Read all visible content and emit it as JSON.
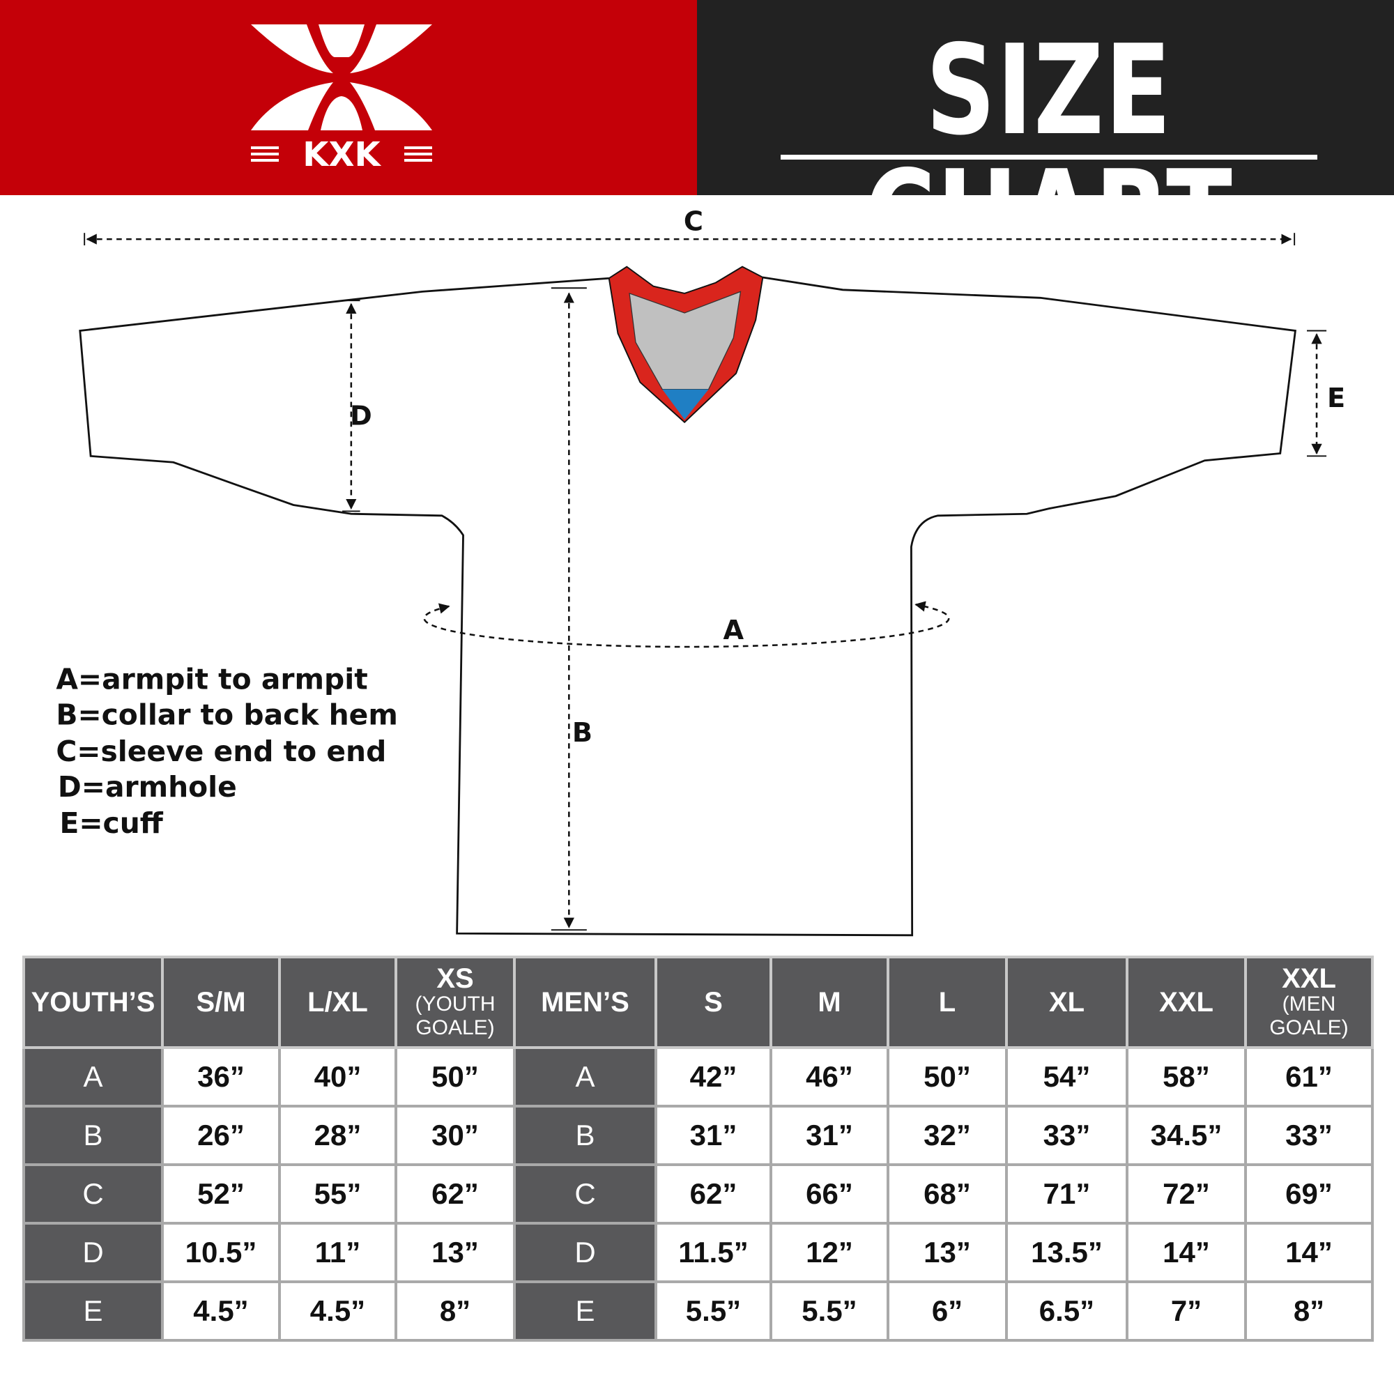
{
  "header": {
    "brand": "KXK",
    "title": "SIZE CHART",
    "colors": {
      "brand_red": "#c40008",
      "dark": "#222222",
      "table_header": "#58585a",
      "collar_red": "#d9251d",
      "collar_gray": "#c0c0c0",
      "collar_blue": "#1f7fc4"
    }
  },
  "diagram": {
    "labels": {
      "A": "A",
      "B": "B",
      "C": "C",
      "D": "D",
      "E": "E"
    },
    "legend": [
      "A=armpit to armpit",
      "B=collar to back hem",
      "C=sleeve end to end",
      "D=armhole",
      "E=cuff"
    ]
  },
  "table": {
    "columns": [
      {
        "main": "YOUTH’S",
        "sub": ""
      },
      {
        "main": "S/M",
        "sub": ""
      },
      {
        "main": "L/XL",
        "sub": ""
      },
      {
        "main": "XS",
        "sub": "(YOUTH GOALE)"
      },
      {
        "main": "MEN’S",
        "sub": ""
      },
      {
        "main": "S",
        "sub": ""
      },
      {
        "main": "M",
        "sub": ""
      },
      {
        "main": "L",
        "sub": ""
      },
      {
        "main": "XL",
        "sub": ""
      },
      {
        "main": "XXL",
        "sub": ""
      },
      {
        "main": "XXL",
        "sub": "(MEN GOALE)"
      }
    ],
    "rows": [
      {
        "youth_label": "A",
        "youth": [
          "36”",
          "40”",
          "50”"
        ],
        "men_label": "A",
        "men": [
          "42”",
          "46”",
          "50”",
          "54”",
          "58”",
          "61”"
        ]
      },
      {
        "youth_label": "B",
        "youth": [
          "26”",
          "28”",
          "30”"
        ],
        "men_label": "B",
        "men": [
          "31”",
          "31”",
          "32”",
          "33”",
          "34.5”",
          "33”"
        ]
      },
      {
        "youth_label": "C",
        "youth": [
          "52”",
          "55”",
          "62”"
        ],
        "men_label": "C",
        "men": [
          "62”",
          "66”",
          "68”",
          "71”",
          "72”",
          "69”"
        ]
      },
      {
        "youth_label": "D",
        "youth": [
          "10.5”",
          "11”",
          "13”"
        ],
        "men_label": "D",
        "men": [
          "11.5”",
          "12”",
          "13”",
          "13.5”",
          "14”",
          "14”"
        ]
      },
      {
        "youth_label": "E",
        "youth": [
          "4.5”",
          "4.5”",
          "8”"
        ],
        "men_label": "E",
        "men": [
          "5.5”",
          "5.5”",
          "6”",
          "6.5”",
          "7”",
          "8”"
        ]
      }
    ]
  }
}
